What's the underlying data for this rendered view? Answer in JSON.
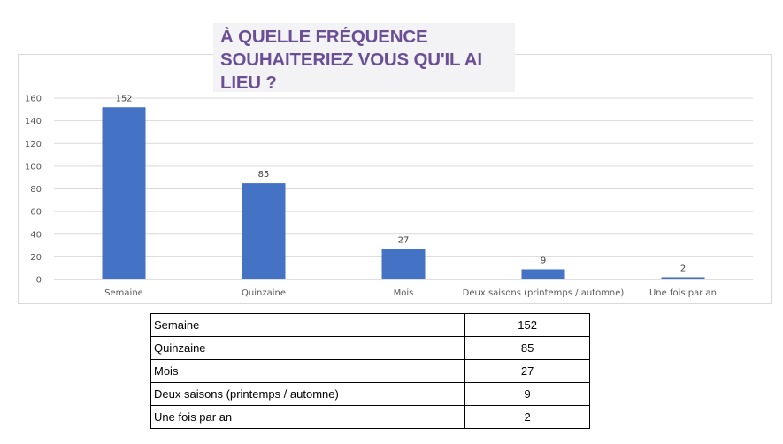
{
  "title": "À QUELLE FRÉQUENCE SOUHAITERIEZ VOUS QU'IL AI LIEU ?",
  "colors": {
    "bar": "#4472c4",
    "gridline": "#d9d9d9",
    "title": "#6b4f95"
  },
  "chart_data": {
    "type": "bar",
    "title": "À QUELLE FRÉQUENCE SOUHAITERIEZ VOUS QU'IL AI LIEU ?",
    "categories": [
      "Semaine",
      "Quinzaine",
      "Mois",
      "Deux saisons (printemps / automne)",
      "Une fois par an"
    ],
    "values": [
      152,
      85,
      27,
      9,
      2
    ],
    "yticks": [
      "0",
      "20",
      "40",
      "60",
      "80",
      "100",
      "120",
      "140",
      "160"
    ],
    "ylim": [
      0,
      160
    ],
    "grid": true,
    "legend": false
  },
  "table": {
    "rows": [
      {
        "label": "Semaine",
        "value": "152"
      },
      {
        "label": "Quinzaine",
        "value": "85"
      },
      {
        "label": "Mois",
        "value": "27"
      },
      {
        "label": "Deux saisons (printemps / automne)",
        "value": "9"
      },
      {
        "label": "Une fois par an",
        "value": "2"
      }
    ]
  }
}
